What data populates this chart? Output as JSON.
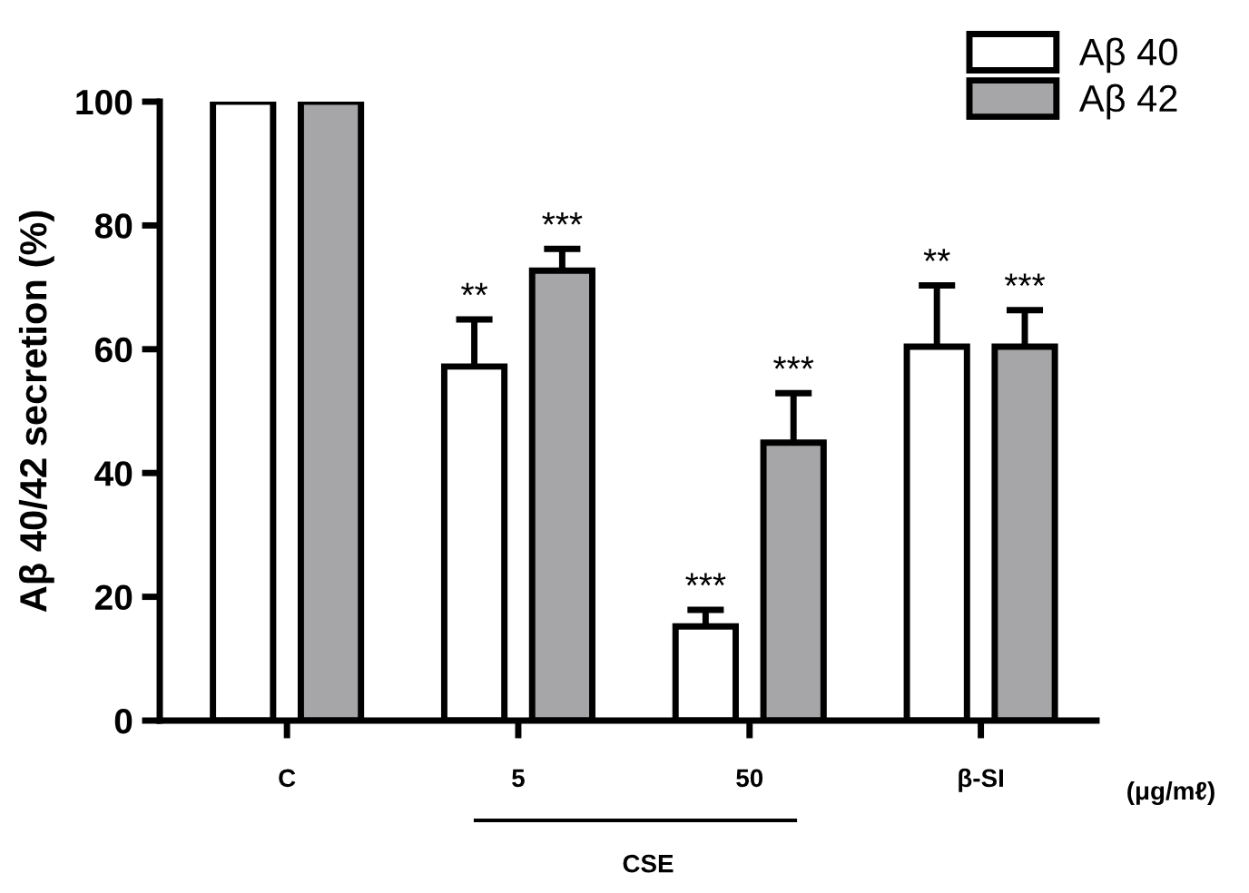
{
  "chart_data": {
    "type": "bar",
    "ylabel": "Aβ 40/42 secretion (%)",
    "categories": [
      "C",
      "5",
      "50",
      "β-SI"
    ],
    "series": [
      {
        "name": "Aβ 40",
        "color": "#ffffff",
        "values": [
          100,
          57.2,
          15.2,
          60.4
        ],
        "errors": [
          null,
          [
            57.2,
            64.8
          ],
          [
            15.2,
            17.9
          ],
          [
            60.4,
            70.3
          ]
        ]
      },
      {
        "name": "Aβ 42",
        "color": "#a6a6a8",
        "values": [
          100,
          72.7,
          44.9,
          60.4
        ],
        "errors": [
          null,
          [
            72.7,
            76.2
          ],
          [
            44.9,
            52.9
          ],
          [
            60.4,
            66.3
          ]
        ]
      }
    ],
    "ylim": [
      0,
      100
    ],
    "yticks": [
      0,
      20,
      40,
      60,
      80,
      100
    ],
    "grid": false,
    "legend": "top right",
    "annotations": [
      "**",
      "***",
      "***",
      "***",
      "**",
      "***",
      "(μg/mℓ)",
      "CSE"
    ]
  }
}
